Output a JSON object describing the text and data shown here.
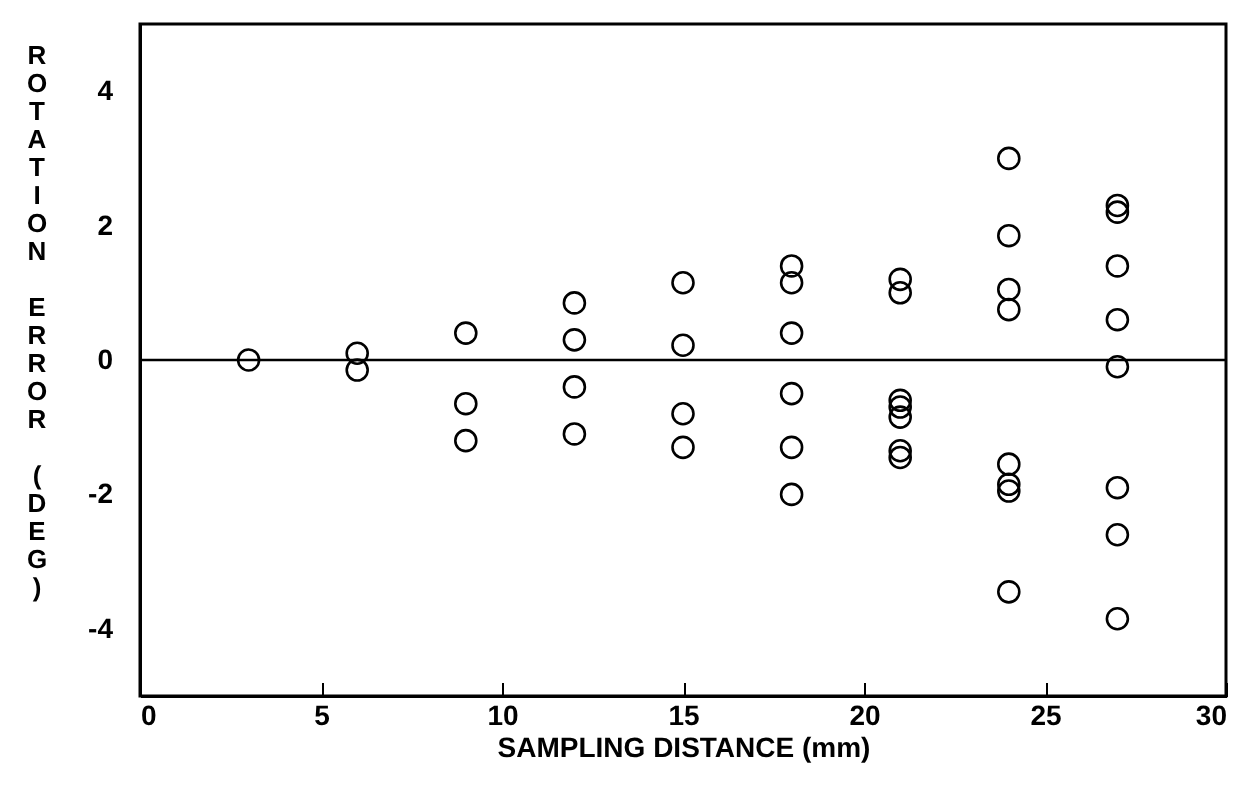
{
  "chart_data": {
    "type": "scatter",
    "xlabel": "SAMPLING DISTANCE (mm)",
    "ylabel": "ROTATION ERROR (DEG)",
    "x": [
      3,
      6,
      6,
      9,
      9,
      9,
      12,
      12,
      12,
      12,
      15,
      15,
      15,
      15,
      18,
      18,
      18,
      18,
      18,
      18,
      21,
      21,
      21,
      21,
      21,
      21,
      21,
      24,
      24,
      24,
      24,
      24,
      24,
      24,
      24,
      27,
      27,
      27,
      27,
      27,
      27,
      27,
      27
    ],
    "series": [
      {
        "color": "#000000",
        "values": [
          0,
          0.1,
          -0.15,
          0.4,
          -0.65,
          -1.2,
          0.85,
          0.3,
          -0.4,
          -1.1,
          1.15,
          0.22,
          -0.8,
          -1.3,
          1.4,
          1.15,
          0.4,
          -0.5,
          -1.3,
          -2.0,
          1.2,
          1.0,
          -0.6,
          -0.7,
          -0.85,
          -1.35,
          -1.45,
          3.0,
          1.85,
          1.05,
          0.75,
          -1.55,
          -1.85,
          -1.95,
          -3.45,
          2.3,
          2.2,
          1.4,
          0.6,
          -0.1,
          -1.9,
          -2.6,
          -3.85
        ]
      }
    ],
    "xlim": [
      0,
      30
    ],
    "xticks": [
      0,
      5,
      10,
      15,
      20,
      25,
      30
    ],
    "ylim": [
      -5,
      5
    ],
    "yticks": [
      -4,
      -2,
      0,
      2,
      4
    ],
    "ref_lines": [
      {
        "axis": "y",
        "value": 0
      }
    ],
    "marker": "circle",
    "grid": false
  }
}
